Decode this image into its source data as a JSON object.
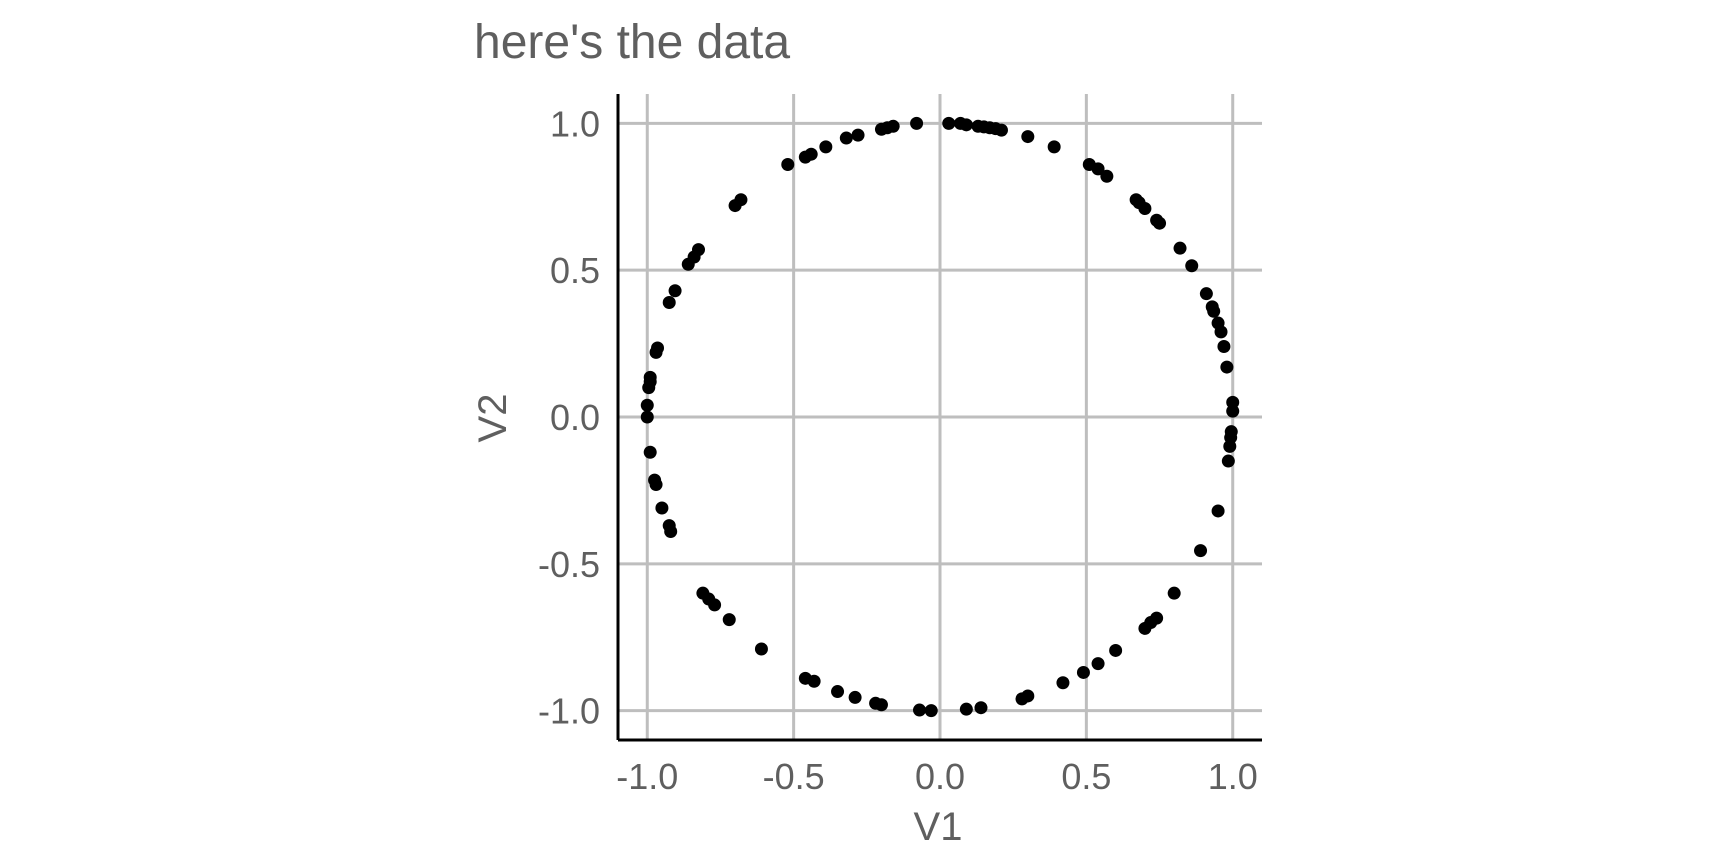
{
  "chart_data": {
    "type": "scatter",
    "title": "here's the data",
    "xlabel": "V1",
    "ylabel": "V2",
    "xlim": [
      -1.1,
      1.1
    ],
    "ylim": [
      -1.1,
      1.1
    ],
    "xticks": [
      -1.0,
      -0.5,
      0.0,
      0.5,
      1.0
    ],
    "yticks": [
      -1.0,
      -0.5,
      0.0,
      0.5,
      1.0
    ],
    "xtick_labels": [
      "-1.0",
      "-0.5",
      "0.0",
      "0.5",
      "1.0"
    ],
    "ytick_labels": [
      "-1.0",
      "-0.5",
      "0.0",
      "0.5",
      "1.0"
    ],
    "grid": true,
    "colors": {
      "point": "#000000",
      "grid": "#bebebe",
      "axis": "#000000",
      "text": "#5f5f5f"
    },
    "points": [
      [
        -0.08,
        1.0
      ],
      [
        0.03,
        1.0
      ],
      [
        0.07,
        1.0
      ],
      [
        0.09,
        0.995
      ],
      [
        0.13,
        0.99
      ],
      [
        0.15,
        0.988
      ],
      [
        0.17,
        0.985
      ],
      [
        0.19,
        0.982
      ],
      [
        0.21,
        0.977
      ],
      [
        0.3,
        0.955
      ],
      [
        0.39,
        0.92
      ],
      [
        0.51,
        0.86
      ],
      [
        0.54,
        0.845
      ],
      [
        0.57,
        0.82
      ],
      [
        0.67,
        0.74
      ],
      [
        0.68,
        0.73
      ],
      [
        0.7,
        0.71
      ],
      [
        0.74,
        0.67
      ],
      [
        0.75,
        0.66
      ],
      [
        0.82,
        0.575
      ],
      [
        0.86,
        0.515
      ],
      [
        0.91,
        0.42
      ],
      [
        0.93,
        0.375
      ],
      [
        0.935,
        0.36
      ],
      [
        0.95,
        0.32
      ],
      [
        0.96,
        0.29
      ],
      [
        0.97,
        0.24
      ],
      [
        0.98,
        0.17
      ],
      [
        1.0,
        0.05
      ],
      [
        1.0,
        0.02
      ],
      [
        0.995,
        -0.05
      ],
      [
        0.993,
        -0.07
      ],
      [
        0.99,
        -0.1
      ],
      [
        0.985,
        -0.15
      ],
      [
        0.95,
        -0.32
      ],
      [
        0.89,
        -0.455
      ],
      [
        0.8,
        -0.6
      ],
      [
        0.74,
        -0.685
      ],
      [
        0.72,
        -0.7
      ],
      [
        0.7,
        -0.72
      ],
      [
        0.6,
        -0.795
      ],
      [
        0.54,
        -0.84
      ],
      [
        0.49,
        -0.87
      ],
      [
        0.42,
        -0.905
      ],
      [
        0.3,
        -0.95
      ],
      [
        0.28,
        -0.96
      ],
      [
        0.14,
        -0.99
      ],
      [
        0.09,
        -0.995
      ],
      [
        -0.03,
        -1.0
      ],
      [
        -0.07,
        -0.998
      ],
      [
        -0.2,
        -0.98
      ],
      [
        -0.22,
        -0.975
      ],
      [
        -0.29,
        -0.955
      ],
      [
        -0.35,
        -0.935
      ],
      [
        -0.43,
        -0.9
      ],
      [
        -0.46,
        -0.89
      ],
      [
        -0.61,
        -0.79
      ],
      [
        -0.72,
        -0.69
      ],
      [
        -0.77,
        -0.64
      ],
      [
        -0.79,
        -0.62
      ],
      [
        -0.81,
        -0.6
      ],
      [
        -0.92,
        -0.39
      ],
      [
        -0.925,
        -0.37
      ],
      [
        -0.95,
        -0.31
      ],
      [
        -0.97,
        -0.23
      ],
      [
        -0.975,
        -0.215
      ],
      [
        -0.99,
        -0.12
      ],
      [
        -1.0,
        0.0
      ],
      [
        -1.0,
        0.04
      ],
      [
        -0.995,
        0.1
      ],
      [
        -0.99,
        0.12
      ],
      [
        -0.99,
        0.135
      ],
      [
        -0.97,
        0.22
      ],
      [
        -0.965,
        0.235
      ],
      [
        -0.925,
        0.39
      ],
      [
        -0.905,
        0.43
      ],
      [
        -0.86,
        0.52
      ],
      [
        -0.84,
        0.545
      ],
      [
        -0.825,
        0.57
      ],
      [
        -0.7,
        0.72
      ],
      [
        -0.68,
        0.74
      ],
      [
        -0.52,
        0.86
      ],
      [
        -0.46,
        0.885
      ],
      [
        -0.44,
        0.895
      ],
      [
        -0.39,
        0.92
      ],
      [
        -0.32,
        0.95
      ],
      [
        -0.28,
        0.96
      ],
      [
        -0.2,
        0.98
      ],
      [
        -0.18,
        0.985
      ],
      [
        -0.16,
        0.99
      ]
    ]
  }
}
